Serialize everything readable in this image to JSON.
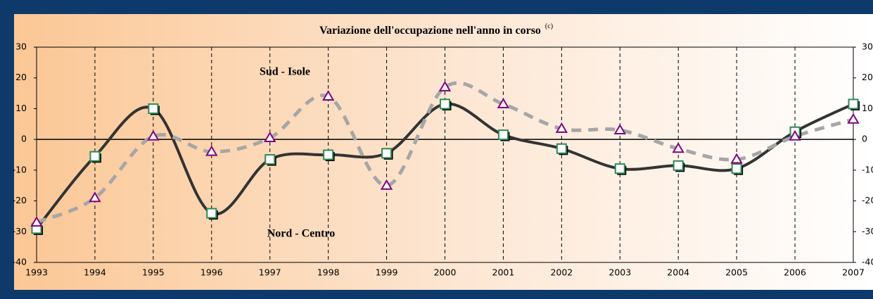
{
  "chart_data": {
    "type": "line",
    "title": "Variazione dell'occupazione nell'anno in corso",
    "title_note": "(c)",
    "annotations": [
      "Sud - Isole",
      "Nord - Centro"
    ],
    "x": [
      1993,
      1994,
      1995,
      1996,
      1997,
      1998,
      1999,
      2000,
      2001,
      2002,
      2003,
      2004,
      2005,
      2006,
      2007
    ],
    "series": [
      {
        "name": "Nord - Centro",
        "color": "#333333",
        "marker_color": "#2e8b57",
        "values": [
          -29,
          -5.5,
          10,
          -24,
          -6.5,
          -5,
          -4.5,
          11.5,
          1.5,
          -3,
          -9.5,
          -8.5,
          -9.5,
          2.5,
          11.5
        ]
      },
      {
        "name": "Sud - Isole",
        "color": "#a6a6a6",
        "marker_color": "#800080",
        "values": [
          -27,
          -19,
          1,
          -4,
          0.5,
          14,
          -15,
          17,
          11.5,
          3.5,
          3,
          -3,
          -6.5,
          1,
          6.5
        ]
      }
    ],
    "xlim": [
      1993,
      2007
    ],
    "xticks": [
      1993,
      1994,
      1995,
      1996,
      1997,
      1998,
      1999,
      2000,
      2001,
      2002,
      2003,
      2004,
      2005,
      2006,
      2007
    ],
    "ylim": [
      -40,
      30
    ],
    "yticks": [
      -40,
      -30,
      -20,
      -10,
      0,
      10,
      20,
      30
    ],
    "y2lim": [
      -40,
      30
    ],
    "y2ticks": [
      -40,
      -30,
      -20,
      -10,
      0,
      10,
      20,
      30
    ],
    "grid": true
  }
}
